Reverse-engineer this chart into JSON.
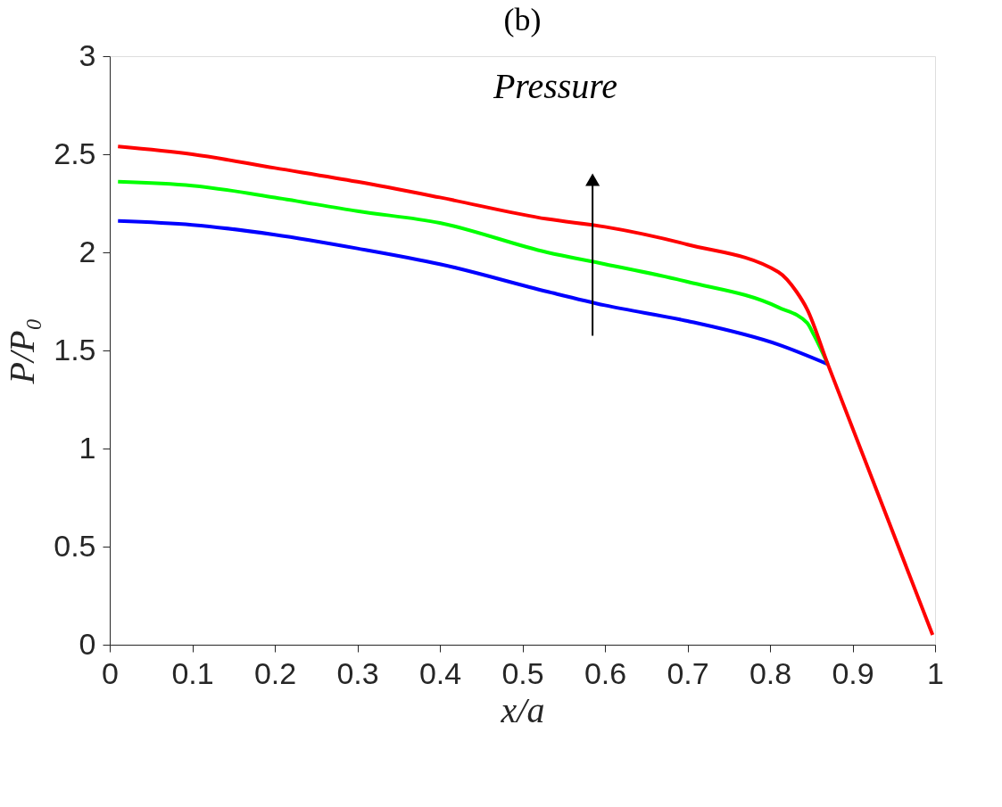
{
  "chart_data": {
    "type": "line",
    "title": "(b)",
    "subtitle": "Pressure",
    "xlabel": "x/a",
    "ylabel": "P/P₀",
    "xlim": [
      0,
      1
    ],
    "ylim": [
      0,
      3
    ],
    "xticks": [
      0,
      0.1,
      0.2,
      0.3,
      0.4,
      0.5,
      0.6,
      0.7,
      0.8,
      0.9,
      1
    ],
    "yticks": [
      0,
      0.5,
      1,
      1.5,
      2,
      2.5,
      3
    ],
    "grid": false,
    "marker": "none",
    "line_style": "solid",
    "series": [
      {
        "color": "#0000ff",
        "x": [
          0.01,
          0.1,
          0.2,
          0.3,
          0.4,
          0.53,
          0.6,
          0.7,
          0.81,
          0.87
        ],
        "values": [
          2.16,
          2.14,
          2.09,
          2.02,
          1.94,
          1.8,
          1.73,
          1.65,
          1.53,
          1.43
        ]
      },
      {
        "color": "#00ff00",
        "x": [
          0.01,
          0.1,
          0.2,
          0.3,
          0.4,
          0.53,
          0.6,
          0.7,
          0.81,
          0.845,
          0.853,
          0.87
        ],
        "values": [
          2.36,
          2.34,
          2.28,
          2.21,
          2.15,
          2.0,
          1.94,
          1.85,
          1.72,
          1.64,
          1.58,
          1.43
        ]
      },
      {
        "color": "#ff0000",
        "x": [
          0.01,
          0.1,
          0.2,
          0.3,
          0.4,
          0.53,
          0.6,
          0.7,
          0.81,
          0.832,
          0.845,
          0.87,
          0.997
        ],
        "values": [
          2.54,
          2.5,
          2.43,
          2.36,
          2.28,
          2.17,
          2.13,
          2.04,
          1.9,
          1.8,
          1.71,
          1.43,
          0.05
        ]
      }
    ]
  }
}
